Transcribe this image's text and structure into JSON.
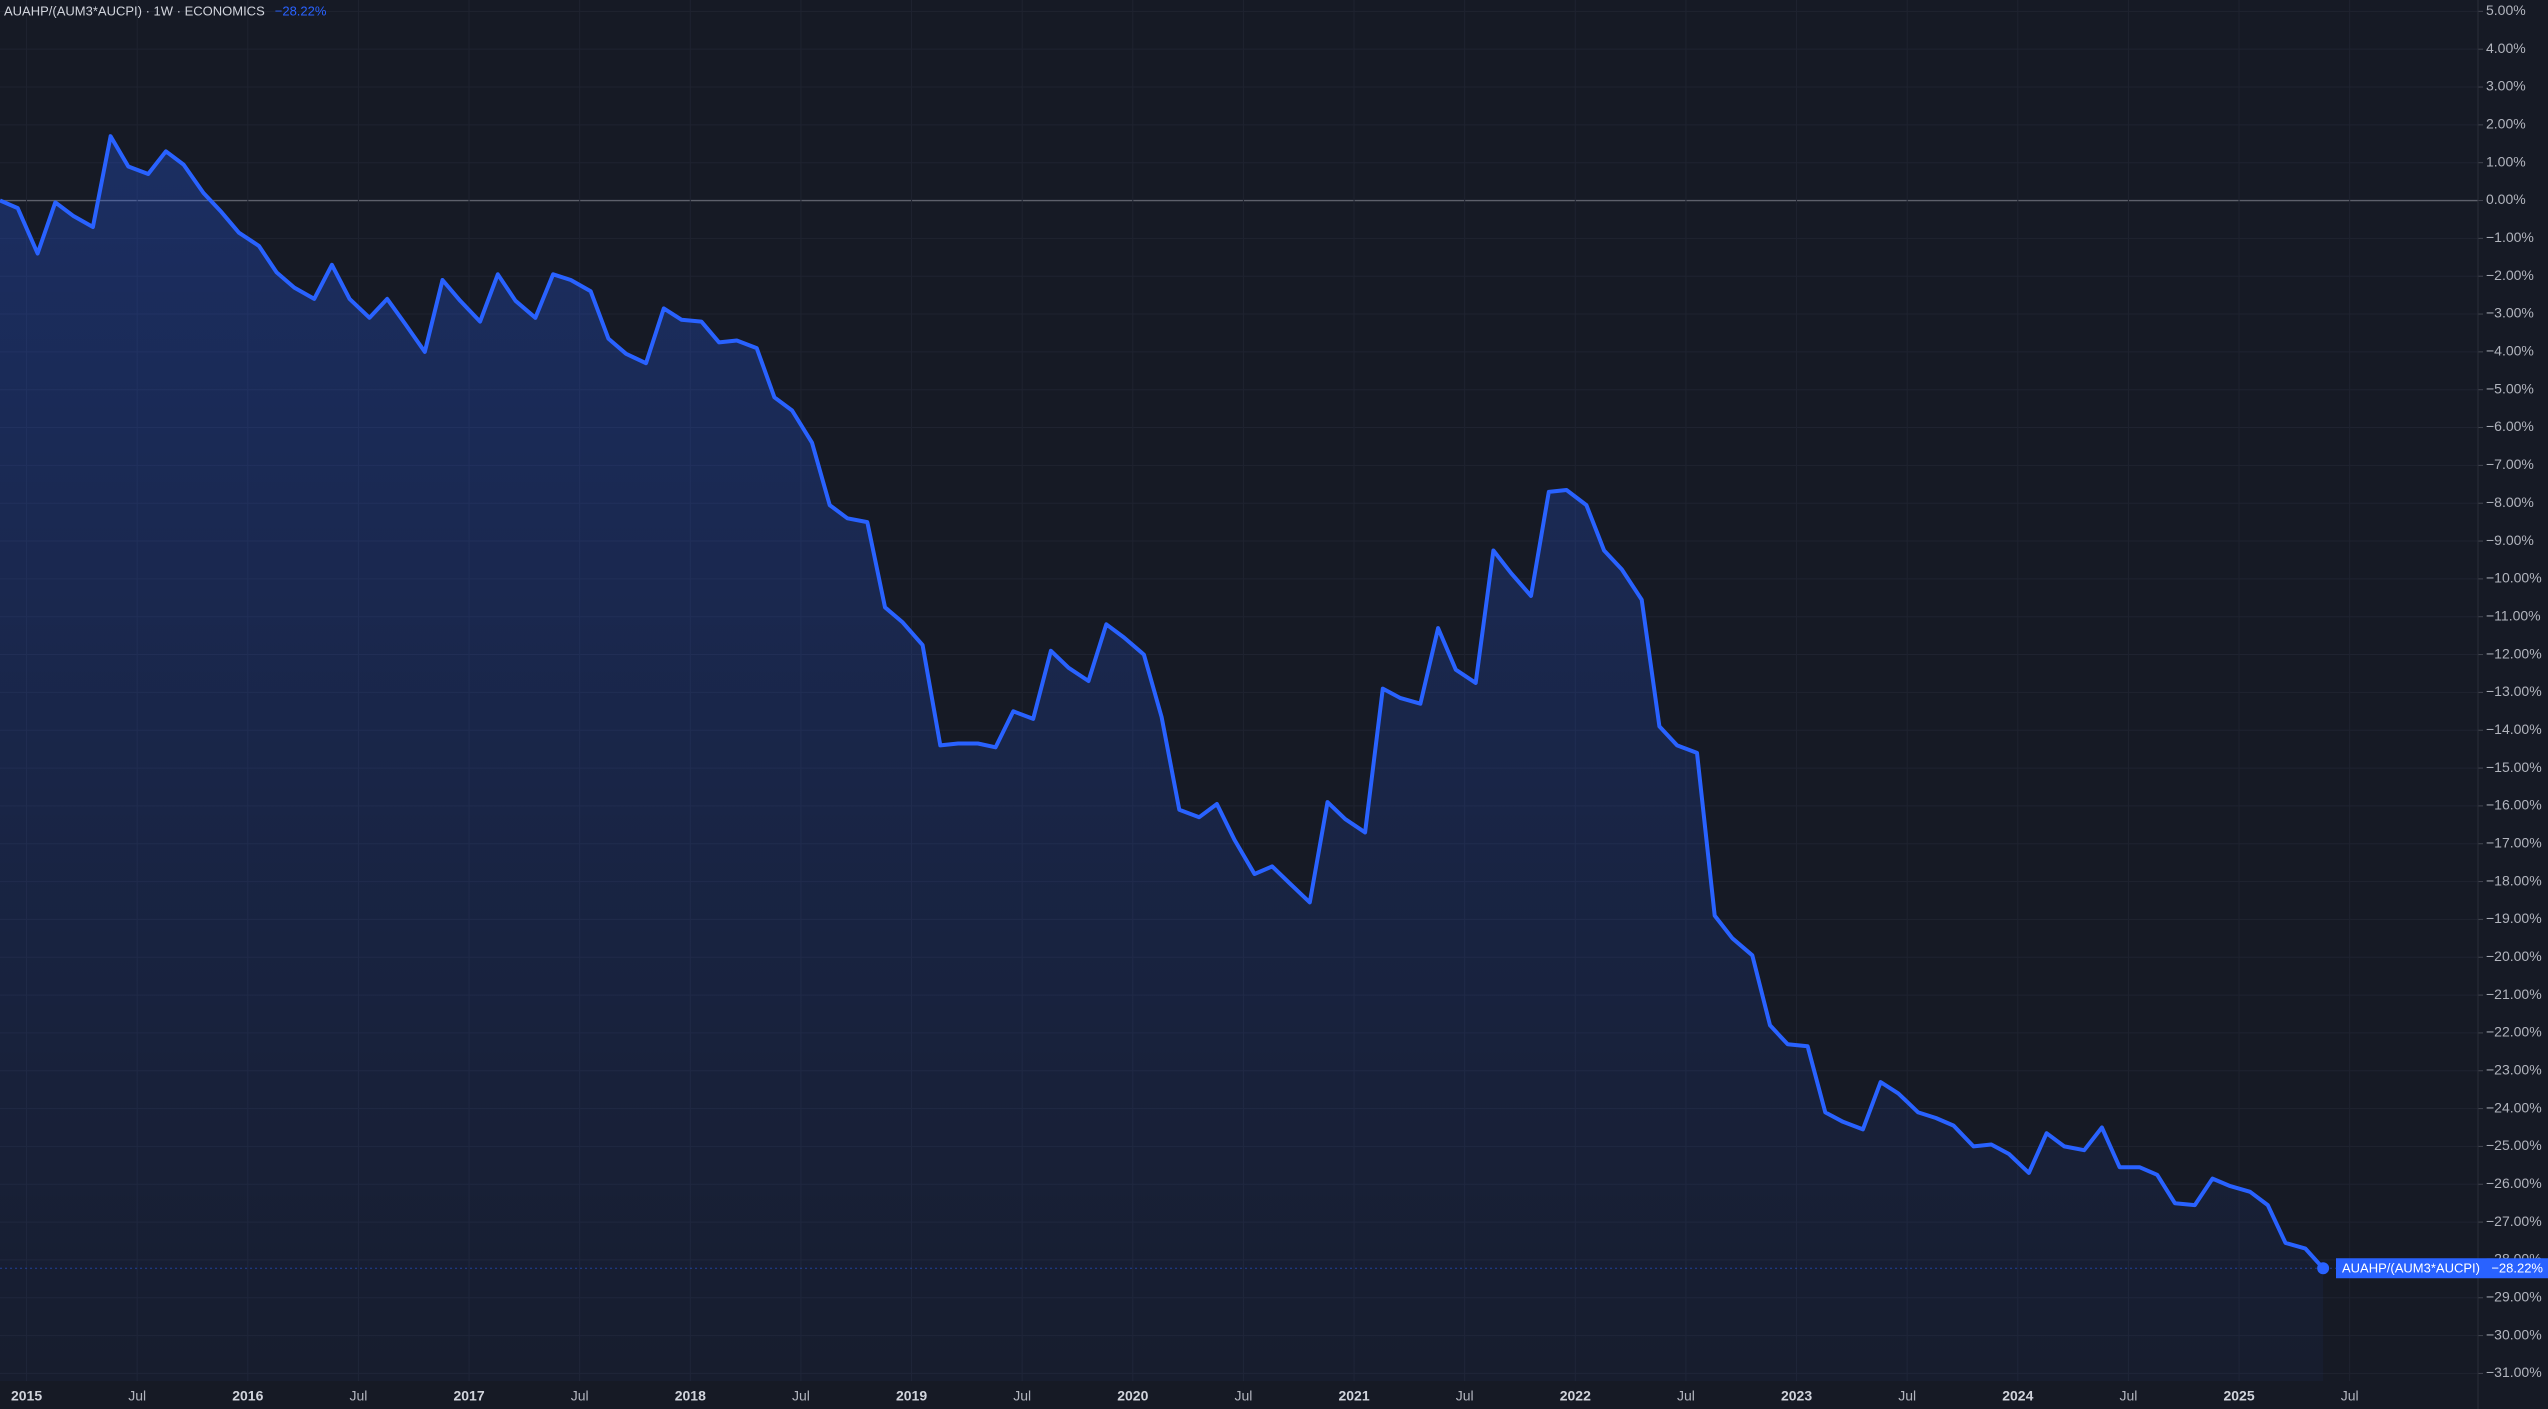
{
  "chart_data": {
    "type": "line",
    "title": "AUAHP/(AUM3*AUCPI) · 1W · ECONOMICS",
    "last_value_label": "−28.22%",
    "x": [
      2014.88,
      2014.96,
      2015.05,
      2015.13,
      2015.21,
      2015.3,
      2015.38,
      2015.46,
      2015.55,
      2015.63,
      2015.71,
      2015.8,
      2015.88,
      2015.96,
      2016.05,
      2016.13,
      2016.21,
      2016.3,
      2016.38,
      2016.46,
      2016.55,
      2016.63,
      2016.71,
      2016.8,
      2016.88,
      2016.96,
      2017.05,
      2017.13,
      2017.21,
      2017.3,
      2017.38,
      2017.46,
      2017.55,
      2017.63,
      2017.71,
      2017.8,
      2017.88,
      2017.96,
      2018.05,
      2018.13,
      2018.21,
      2018.3,
      2018.38,
      2018.46,
      2018.55,
      2018.63,
      2018.71,
      2018.8,
      2018.88,
      2018.96,
      2019.05,
      2019.13,
      2019.21,
      2019.3,
      2019.38,
      2019.46,
      2019.55,
      2019.63,
      2019.71,
      2019.8,
      2019.88,
      2019.96,
      2020.05,
      2020.13,
      2020.21,
      2020.3,
      2020.38,
      2020.46,
      2020.55,
      2020.63,
      2020.71,
      2020.8,
      2020.88,
      2020.96,
      2021.05,
      2021.13,
      2021.21,
      2021.3,
      2021.38,
      2021.46,
      2021.55,
      2021.63,
      2021.71,
      2021.8,
      2021.88,
      2021.96,
      2022.05,
      2022.13,
      2022.21,
      2022.3,
      2022.38,
      2022.46,
      2022.55,
      2022.63,
      2022.71,
      2022.8,
      2022.88,
      2022.96,
      2023.05,
      2023.13,
      2023.21,
      2023.3,
      2023.38,
      2023.46,
      2023.55,
      2023.63,
      2023.71,
      2023.8,
      2023.88,
      2023.96,
      2024.05,
      2024.13,
      2024.21,
      2024.3,
      2024.38,
      2024.46,
      2024.55,
      2024.63,
      2024.71,
      2024.8,
      2024.88,
      2024.96,
      2025.05,
      2025.13,
      2025.21,
      2025.3,
      2025.38
    ],
    "series": [
      {
        "name": "AUAHP/(AUM3*AUCPI)",
        "color": "#2962ff",
        "values": [
          0,
          -0.2,
          -1.4,
          -0.05,
          -0.4,
          -0.7,
          1.7,
          0.9,
          0.7,
          1.3,
          0.95,
          0.2,
          -0.3,
          -0.85,
          -1.2,
          -1.9,
          -2.3,
          -2.6,
          -1.7,
          -2.6,
          -3.1,
          -2.6,
          -3.25,
          -4.0,
          -2.1,
          -2.65,
          -3.2,
          -1.95,
          -2.65,
          -3.1,
          -1.95,
          -2.1,
          -2.4,
          -3.65,
          -4.05,
          -4.3,
          -2.85,
          -3.15,
          -3.2,
          -3.75,
          -3.7,
          -3.9,
          -5.2,
          -5.55,
          -6.4,
          -8.05,
          -8.4,
          -8.5,
          -10.75,
          -11.15,
          -11.75,
          -14.4,
          -14.35,
          -14.35,
          -14.45,
          -13.5,
          -13.7,
          -11.9,
          -12.35,
          -12.7,
          -11.2,
          -11.55,
          -12.0,
          -13.65,
          -16.1,
          -16.3,
          -15.95,
          -16.9,
          -17.8,
          -17.6,
          -18.05,
          -18.55,
          -15.9,
          -16.35,
          -16.7,
          -12.9,
          -13.15,
          -13.3,
          -11.3,
          -12.4,
          -12.75,
          -9.25,
          -9.85,
          -10.45,
          -7.7,
          -7.65,
          -8.05,
          -9.25,
          -9.75,
          -10.55,
          -13.9,
          -14.4,
          -14.6,
          -18.9,
          -19.5,
          -19.95,
          -21.8,
          -22.3,
          -22.35,
          -24.1,
          -24.35,
          -24.55,
          -23.3,
          -23.6,
          -24.1,
          -24.25,
          -24.45,
          -25.0,
          -24.95,
          -25.2,
          -25.7,
          -24.65,
          -25.0,
          -25.1,
          -24.5,
          -25.55,
          -25.55,
          -25.75,
          -26.5,
          -26.55,
          -25.85,
          -26.05,
          -26.2,
          -26.55,
          -27.55,
          -27.7,
          -28.22
        ]
      }
    ],
    "xlim": [
      2014.88,
      2026.08
    ],
    "xticks": [
      2015,
      {
        "value": 2015.5,
        "label": "Jul"
      },
      2016,
      {
        "value": 2016.5,
        "label": "Jul"
      },
      2017,
      {
        "value": 2017.5,
        "label": "Jul"
      },
      2018,
      {
        "value": 2018.5,
        "label": "Jul"
      },
      2019,
      {
        "value": 2019.5,
        "label": "Jul"
      },
      2020,
      {
        "value": 2020.5,
        "label": "Jul"
      },
      2021,
      {
        "value": 2021.5,
        "label": "Jul"
      },
      2022,
      {
        "value": 2022.5,
        "label": "Jul"
      },
      2023,
      {
        "value": 2023.5,
        "label": "Jul"
      },
      2024,
      {
        "value": 2024.5,
        "label": "Jul"
      },
      2025,
      {
        "value": 2025.5,
        "label": "Jul"
      }
    ],
    "ylim": [
      -31.2,
      5.3
    ],
    "yticks": [
      {
        "value": 5,
        "label": "5.00%"
      },
      {
        "value": 4,
        "label": "4.00%"
      },
      {
        "value": 3,
        "label": "3.00%"
      },
      {
        "value": 2,
        "label": "2.00%"
      },
      {
        "value": 1,
        "label": "1.00%"
      },
      {
        "value": 0,
        "label": "0.00%"
      },
      {
        "value": -1,
        "label": "−1.00%"
      },
      {
        "value": -2,
        "label": "−2.00%"
      },
      {
        "value": -3,
        "label": "−3.00%"
      },
      {
        "value": -4,
        "label": "−4.00%"
      },
      {
        "value": -5,
        "label": "−5.00%"
      },
      {
        "value": -6,
        "label": "−6.00%"
      },
      {
        "value": -7,
        "label": "−7.00%"
      },
      {
        "value": -8,
        "label": "−8.00%"
      },
      {
        "value": -9,
        "label": "−9.00%"
      },
      {
        "value": -10,
        "label": "−10.00%"
      },
      {
        "value": -11,
        "label": "−11.00%"
      },
      {
        "value": -12,
        "label": "−12.00%"
      },
      {
        "value": -13,
        "label": "−13.00%"
      },
      {
        "value": -14,
        "label": "−14.00%"
      },
      {
        "value": -15,
        "label": "−15.00%"
      },
      {
        "value": -16,
        "label": "−16.00%"
      },
      {
        "value": -17,
        "label": "−17.00%"
      },
      {
        "value": -18,
        "label": "−18.00%"
      },
      {
        "value": -19,
        "label": "−19.00%"
      },
      {
        "value": -20,
        "label": "−20.00%"
      },
      {
        "value": -21,
        "label": "−21.00%"
      },
      {
        "value": -22,
        "label": "−22.00%"
      },
      {
        "value": -23,
        "label": "−23.00%"
      },
      {
        "value": -24,
        "label": "−24.00%"
      },
      {
        "value": -25,
        "label": "−25.00%"
      },
      {
        "value": -26,
        "label": "−26.00%"
      },
      {
        "value": -27,
        "label": "−27.00%"
      },
      {
        "value": -28,
        "label": "−28.00%"
      },
      {
        "value": -29,
        "label": "−29.00%"
      },
      {
        "value": -30,
        "label": "−30.00%"
      },
      {
        "value": -31,
        "label": "−31.00%"
      }
    ],
    "grid": true
  }
}
